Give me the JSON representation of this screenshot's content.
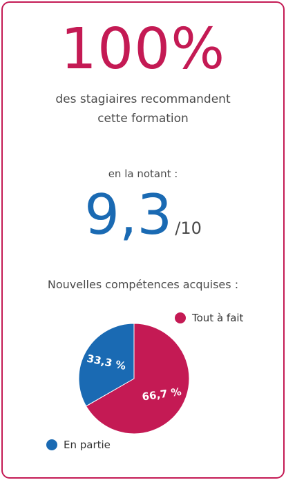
{
  "headline": {
    "percent": "100%",
    "line1": "des stagiaires recommandent",
    "line2": "cette formation"
  },
  "rating": {
    "intro": "en la notant :",
    "score": "9,3",
    "max": "/10"
  },
  "colors": {
    "accent": "#c41a54",
    "blue": "#1a6ab3",
    "text": "#4a4a4a"
  },
  "chart_data": {
    "type": "pie",
    "title": "Nouvelles compétences acquises :",
    "slices": [
      {
        "name": "Tout à fait",
        "value": 66.7,
        "label": "66,7 %",
        "color": "#c41a54"
      },
      {
        "name": "En partie",
        "value": 33.3,
        "label": "33,3 %",
        "color": "#1a6ab3"
      }
    ],
    "legend": [
      "Tout à fait",
      "En partie"
    ]
  }
}
